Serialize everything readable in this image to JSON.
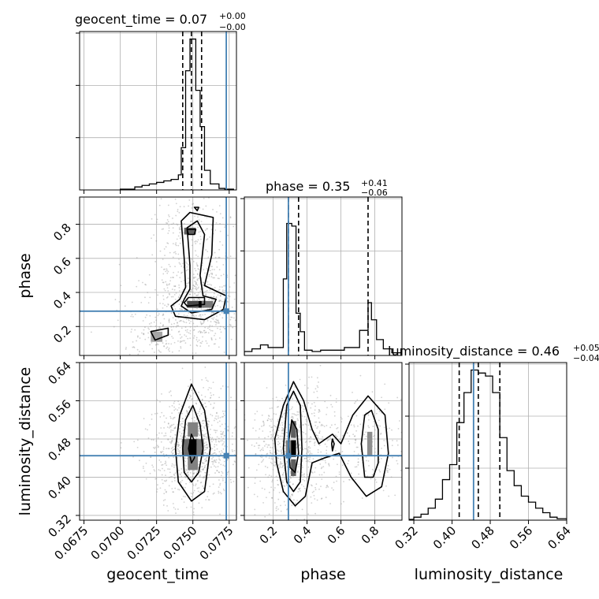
{
  "chart_data": {
    "type": "corner",
    "parameters": [
      {
        "name": "geocent_time",
        "title_prefix": "geocent_time = 0.07",
        "err_plus": "+0.00",
        "err_minus": "−0.00",
        "range": [
          0.0672,
          0.078
        ],
        "ticks": [
          "0.0675",
          "0.0700",
          "0.0725",
          "0.0750",
          "0.0775"
        ],
        "tick_values": [
          0.0675,
          0.07,
          0.0725,
          0.075,
          0.0775
        ],
        "truth": 0.0773,
        "quantiles": [
          0.0743,
          0.0749,
          0.0756
        ]
      },
      {
        "name": "phase",
        "title_prefix": "phase = 0.35",
        "err_plus": "+0.41",
        "err_minus": "−0.06",
        "range": [
          0.03,
          0.96
        ],
        "ticks": [
          "0.2",
          "0.4",
          "0.6",
          "0.8"
        ],
        "tick_values": [
          0.2,
          0.4,
          0.6,
          0.8
        ],
        "truth": 0.29,
        "quantiles": [
          0.29,
          0.35,
          0.76
        ]
      },
      {
        "name": "luminosity_distance",
        "title_prefix": "luminosity_distance = 0.46",
        "err_plus": "+0.05",
        "err_minus": "−0.04",
        "range": [
          0.31,
          0.64
        ],
        "ticks": [
          "0.32",
          "0.40",
          "0.48",
          "0.56",
          "0.64"
        ],
        "tick_values": [
          0.32,
          0.4,
          0.48,
          0.56,
          0.64
        ],
        "truth": 0.445,
        "quantiles": [
          0.415,
          0.455,
          0.5
        ]
      }
    ],
    "histograms": [
      {
        "parameter": "geocent_time",
        "bin_edges": [
          0.07,
          0.071,
          0.0715,
          0.072,
          0.0725,
          0.073,
          0.0735,
          0.074,
          0.0742,
          0.0745,
          0.0748,
          0.075,
          0.0752,
          0.0755,
          0.0758,
          0.076,
          0.0762,
          0.0765,
          0.0768,
          0.0772,
          0.0778
        ],
        "counts": [
          0.005,
          0.02,
          0.03,
          0.04,
          0.05,
          0.06,
          0.07,
          0.1,
          0.28,
          0.79,
          1.0,
          1.0,
          0.66,
          0.42,
          0.13,
          0.13,
          0.04,
          0.04,
          0.01,
          0.005
        ]
      },
      {
        "parameter": "phase",
        "bin_edges": [
          0.03,
          0.075,
          0.125,
          0.17,
          0.215,
          0.26,
          0.28,
          0.31,
          0.335,
          0.36,
          0.385,
          0.43,
          0.48,
          0.53,
          0.57,
          0.62,
          0.66,
          0.71,
          0.76,
          0.78,
          0.81,
          0.85,
          0.9,
          0.96
        ],
        "counts": [
          0.03,
          0.05,
          0.08,
          0.06,
          0.06,
          0.58,
          1.0,
          0.98,
          0.32,
          0.18,
          0.04,
          0.03,
          0.04,
          0.04,
          0.04,
          0.06,
          0.06,
          0.19,
          0.4,
          0.27,
          0.12,
          0.05,
          0.02
        ]
      },
      {
        "parameter": "luminosity_distance",
        "bin_edges": [
          0.31,
          0.32,
          0.335,
          0.35,
          0.365,
          0.38,
          0.395,
          0.41,
          0.425,
          0.44,
          0.455,
          0.47,
          0.485,
          0.5,
          0.515,
          0.53,
          0.545,
          0.56,
          0.575,
          0.59,
          0.605,
          0.62,
          0.64
        ],
        "counts": [
          0.005,
          0.02,
          0.04,
          0.08,
          0.14,
          0.27,
          0.37,
          0.65,
          0.85,
          1.0,
          0.98,
          0.96,
          0.85,
          0.55,
          0.33,
          0.23,
          0.16,
          0.12,
          0.08,
          0.05,
          0.02,
          0.01
        ]
      }
    ],
    "panel_ylims": [
      [
        0,
        1.05
      ],
      [
        0,
        1.2
      ],
      [
        0,
        1.05
      ]
    ],
    "contours": [
      {
        "x": "geocent_time",
        "y": "phase",
        "levels": [
          {
            "shape": "loop",
            "points": [
              [
                0.0741,
                0.36
              ],
              [
                0.0745,
                0.43
              ],
              [
                0.0744,
                0.6
              ],
              [
                0.0742,
                0.82
              ],
              [
                0.0748,
                0.87
              ],
              [
                0.0764,
                0.84
              ],
              [
                0.0763,
                0.62
              ],
              [
                0.0758,
                0.44
              ],
              [
                0.0773,
                0.38
              ],
              [
                0.0771,
                0.3
              ],
              [
                0.0758,
                0.24
              ],
              [
                0.0738,
                0.26
              ],
              [
                0.0735,
                0.32
              ],
              [
                0.0741,
                0.36
              ]
            ]
          },
          {
            "shape": "loop",
            "points": [
              [
                0.0744,
                0.36
              ],
              [
                0.0748,
                0.42
              ],
              [
                0.0748,
                0.56
              ],
              [
                0.0746,
                0.78
              ],
              [
                0.0753,
                0.82
              ],
              [
                0.0758,
                0.74
              ],
              [
                0.0755,
                0.5
              ],
              [
                0.0757,
                0.38
              ],
              [
                0.0766,
                0.36
              ],
              [
                0.0763,
                0.3
              ],
              [
                0.0749,
                0.28
              ],
              [
                0.0742,
                0.32
              ],
              [
                0.0744,
                0.36
              ]
            ]
          },
          {
            "shape": "loop",
            "points": [
              [
                0.0746,
                0.32
              ],
              [
                0.0758,
                0.33
              ],
              [
                0.0758,
                0.37
              ],
              [
                0.0747,
                0.37
              ],
              [
                0.0744,
                0.34
              ],
              [
                0.0746,
                0.32
              ]
            ]
          },
          {
            "shape": "loop",
            "points": [
              [
                0.0746,
                0.77
              ],
              [
                0.0752,
                0.77
              ],
              [
                0.0751,
                0.74
              ],
              [
                0.0747,
                0.74
              ],
              [
                0.0746,
                0.77
              ]
            ]
          },
          {
            "shape": "loop",
            "points": [
              [
                0.0721,
                0.17
              ],
              [
                0.0733,
                0.19
              ],
              [
                0.0733,
                0.15
              ],
              [
                0.0724,
                0.12
              ],
              [
                0.0721,
                0.17
              ]
            ]
          },
          {
            "shape": "loop",
            "points": [
              [
                0.0751,
                0.9
              ],
              [
                0.0754,
                0.9
              ],
              [
                0.0753,
                0.88
              ],
              [
                0.0751,
                0.9
              ]
            ]
          }
        ],
        "density": [
          {
            "x": 0.0725,
            "y": 0.14,
            "w": 0.0008,
            "h": 0.06,
            "level": 0.3
          },
          {
            "x": 0.0755,
            "y": 0.33,
            "w": 0.0008,
            "h": 0.04,
            "level": 1.0
          },
          {
            "x": 0.075,
            "y": 0.33,
            "w": 0.0008,
            "h": 0.04,
            "level": 0.7
          },
          {
            "x": 0.076,
            "y": 0.33,
            "w": 0.0008,
            "h": 0.04,
            "level": 0.5
          },
          {
            "x": 0.0748,
            "y": 0.76,
            "w": 0.0008,
            "h": 0.04,
            "level": 0.6
          }
        ]
      },
      {
        "x": "geocent_time",
        "y": "luminosity_distance",
        "levels": [
          {
            "shape": "loop",
            "points": [
              [
                0.0738,
                0.46
              ],
              [
                0.0741,
                0.53
              ],
              [
                0.0749,
                0.595
              ],
              [
                0.0758,
                0.54
              ],
              [
                0.0762,
                0.46
              ],
              [
                0.0758,
                0.37
              ],
              [
                0.0749,
                0.35
              ],
              [
                0.074,
                0.39
              ],
              [
                0.0738,
                0.46
              ]
            ]
          },
          {
            "shape": "loop",
            "points": [
              [
                0.0743,
                0.46
              ],
              [
                0.0745,
                0.52
              ],
              [
                0.075,
                0.55
              ],
              [
                0.0755,
                0.51
              ],
              [
                0.0757,
                0.46
              ],
              [
                0.0754,
                0.41
              ],
              [
                0.0749,
                0.39
              ],
              [
                0.0744,
                0.41
              ],
              [
                0.0743,
                0.46
              ]
            ]
          },
          {
            "shape": "loop",
            "points": [
              [
                0.0747,
                0.46
              ],
              [
                0.0749,
                0.49
              ],
              [
                0.0752,
                0.47
              ],
              [
                0.0751,
                0.44
              ],
              [
                0.0749,
                0.43
              ],
              [
                0.0747,
                0.46
              ]
            ]
          }
        ],
        "density": [
          {
            "x": 0.075,
            "y": 0.462,
            "w": 0.0007,
            "h": 0.035,
            "level": 1.0
          },
          {
            "x": 0.0745,
            "y": 0.462,
            "w": 0.0005,
            "h": 0.035,
            "level": 0.55
          },
          {
            "x": 0.0755,
            "y": 0.462,
            "w": 0.0005,
            "h": 0.035,
            "level": 0.5
          },
          {
            "x": 0.075,
            "y": 0.43,
            "w": 0.0007,
            "h": 0.03,
            "level": 0.45
          },
          {
            "x": 0.075,
            "y": 0.5,
            "w": 0.0007,
            "h": 0.03,
            "level": 0.45
          }
        ]
      },
      {
        "x": "phase",
        "y": "luminosity_distance",
        "levels": [
          {
            "shape": "loop",
            "points": [
              [
                0.21,
                0.48
              ],
              [
                0.26,
                0.55
              ],
              [
                0.32,
                0.6
              ],
              [
                0.38,
                0.56
              ],
              [
                0.43,
                0.5
              ],
              [
                0.47,
                0.47
              ],
              [
                0.55,
                0.49
              ],
              [
                0.6,
                0.47
              ],
              [
                0.67,
                0.53
              ],
              [
                0.76,
                0.57
              ],
              [
                0.86,
                0.53
              ],
              [
                0.88,
                0.45
              ],
              [
                0.84,
                0.38
              ],
              [
                0.75,
                0.36
              ],
              [
                0.66,
                0.4
              ],
              [
                0.59,
                0.45
              ],
              [
                0.5,
                0.44
              ],
              [
                0.43,
                0.43
              ],
              [
                0.39,
                0.36
              ],
              [
                0.33,
                0.34
              ],
              [
                0.26,
                0.37
              ],
              [
                0.22,
                0.43
              ],
              [
                0.21,
                0.48
              ]
            ]
          },
          {
            "shape": "loop",
            "points": [
              [
                0.26,
                0.46
              ],
              [
                0.28,
                0.55
              ],
              [
                0.32,
                0.58
              ],
              [
                0.36,
                0.55
              ],
              [
                0.37,
                0.46
              ],
              [
                0.36,
                0.39
              ],
              [
                0.32,
                0.37
              ],
              [
                0.28,
                0.39
              ],
              [
                0.26,
                0.46
              ]
            ]
          },
          {
            "shape": "loop",
            "points": [
              [
                0.29,
                0.47
              ],
              [
                0.31,
                0.52
              ],
              [
                0.34,
                0.5
              ],
              [
                0.35,
                0.45
              ],
              [
                0.33,
                0.41
              ],
              [
                0.3,
                0.42
              ],
              [
                0.29,
                0.47
              ]
            ]
          },
          {
            "shape": "loop",
            "points": [
              [
                0.72,
                0.47
              ],
              [
                0.74,
                0.53
              ],
              [
                0.78,
                0.54
              ],
              [
                0.82,
                0.5
              ],
              [
                0.82,
                0.43
              ],
              [
                0.79,
                0.4
              ],
              [
                0.74,
                0.4
              ],
              [
                0.72,
                0.47
              ]
            ]
          },
          {
            "shape": "loop",
            "points": [
              [
                0.545,
                0.47
              ],
              [
                0.55,
                0.48
              ],
              [
                0.56,
                0.47
              ],
              [
                0.55,
                0.455
              ],
              [
                0.545,
                0.47
              ]
            ]
          }
        ],
        "density": [
          {
            "x": 0.32,
            "y": 0.46,
            "w": 0.03,
            "h": 0.035,
            "level": 1.0
          },
          {
            "x": 0.32,
            "y": 0.5,
            "w": 0.03,
            "h": 0.035,
            "level": 0.6
          },
          {
            "x": 0.32,
            "y": 0.42,
            "w": 0.03,
            "h": 0.035,
            "level": 0.6
          },
          {
            "x": 0.29,
            "y": 0.46,
            "w": 0.03,
            "h": 0.035,
            "level": 0.45
          },
          {
            "x": 0.77,
            "y": 0.47,
            "w": 0.03,
            "h": 0.05,
            "level": 0.4
          }
        ]
      }
    ]
  }
}
